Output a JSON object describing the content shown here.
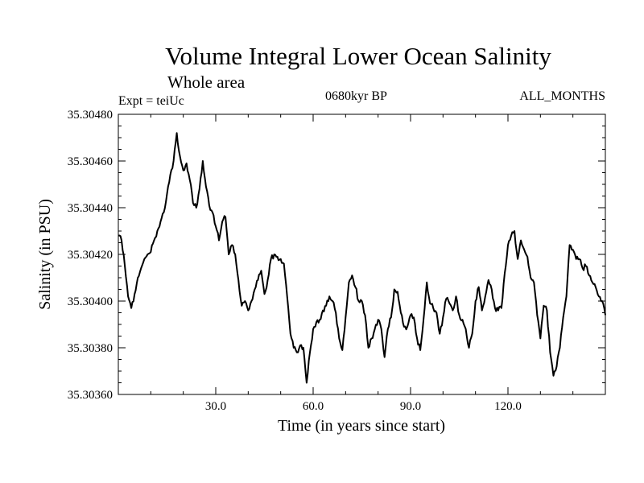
{
  "header": {
    "title": "Volume Integral Lower Ocean Salinity",
    "subtitle": "Whole area",
    "experiment": "Expt = teiUc",
    "period": "0680kyr BP",
    "months": "ALL_MONTHS"
  },
  "chart_data": {
    "type": "line",
    "title": "Volume Integral Lower Ocean Salinity",
    "xlabel": "Time (in years since start)",
    "ylabel": "Salinity (in PSU)",
    "xlim": [
      0,
      150
    ],
    "ylim": [
      35.3036,
      35.3048
    ],
    "x_ticks": [
      30,
      60,
      90,
      120
    ],
    "x_tick_labels": [
      "30.0",
      "60.0",
      "90.0",
      "120.0"
    ],
    "y_ticks": [
      35.3036,
      35.3038,
      35.304,
      35.3042,
      35.3044,
      35.3046,
      35.3048
    ],
    "y_tick_labels": [
      "35.30360",
      "35.30380",
      "35.30400",
      "35.30420",
      "35.30440",
      "35.30460",
      "35.30480"
    ],
    "grid": false,
    "series": [
      {
        "name": "Salinity",
        "x": [
          0,
          1,
          2,
          3,
          4,
          5,
          6,
          7,
          8,
          9,
          10,
          11,
          12,
          13,
          14,
          15,
          16,
          17,
          18,
          19,
          20,
          21,
          22,
          23,
          24,
          25,
          26,
          27,
          28,
          29,
          30,
          31,
          32,
          33,
          34,
          35,
          36,
          37,
          38,
          39,
          40,
          41,
          42,
          43,
          44,
          45,
          46,
          47,
          48,
          49,
          50,
          51,
          52,
          53,
          54,
          55,
          56,
          57,
          58,
          59,
          60,
          61,
          62,
          63,
          64,
          65,
          66,
          67,
          68,
          69,
          70,
          71,
          72,
          73,
          74,
          75,
          76,
          77,
          78,
          79,
          80,
          81,
          82,
          83,
          84,
          85,
          86,
          87,
          88,
          89,
          90,
          91,
          92,
          93,
          94,
          95,
          96,
          97,
          98,
          99,
          100,
          101,
          102,
          103,
          104,
          105,
          106,
          107,
          108,
          109,
          110,
          111,
          112,
          113,
          114,
          115,
          116,
          117,
          118,
          119,
          120,
          121,
          122,
          123,
          124,
          125,
          126,
          127,
          128,
          129,
          130,
          131,
          132,
          133,
          134,
          135,
          136,
          137,
          138,
          139,
          140,
          141,
          142,
          143,
          144,
          145,
          146,
          147,
          148,
          149,
          150
        ],
        "values": [
          35.30428,
          35.30426,
          35.30415,
          35.30402,
          35.30397,
          35.30403,
          35.3041,
          35.30414,
          35.30418,
          35.3042,
          35.30421,
          35.30426,
          35.3043,
          35.30434,
          35.30438,
          35.30446,
          35.30454,
          35.3046,
          35.30472,
          35.30462,
          35.30456,
          35.30459,
          35.30452,
          35.30442,
          35.3044,
          35.30448,
          35.3046,
          35.30449,
          35.30441,
          35.30438,
          35.30432,
          35.30426,
          35.30434,
          35.30436,
          35.3042,
          35.30424,
          35.3042,
          35.30409,
          35.30398,
          35.304,
          35.30396,
          35.304,
          35.30405,
          35.30409,
          35.30413,
          35.30403,
          35.30409,
          35.30418,
          35.3042,
          35.30419,
          35.30418,
          35.30416,
          35.30402,
          35.30386,
          35.3038,
          35.30378,
          35.30381,
          35.3038,
          35.30365,
          35.30378,
          35.30388,
          35.30391,
          35.30392,
          35.30396,
          35.30398,
          35.30402,
          35.304,
          35.30395,
          35.30384,
          35.30379,
          35.30393,
          35.30408,
          35.30411,
          35.30406,
          35.304,
          35.304,
          35.30394,
          35.3038,
          35.30384,
          35.30388,
          35.30392,
          35.30388,
          35.30376,
          35.30388,
          35.30393,
          35.30405,
          35.30404,
          35.30395,
          35.30389,
          35.30389,
          35.30394,
          35.30393,
          35.30384,
          35.30379,
          35.30392,
          35.30408,
          35.30399,
          35.30397,
          35.30395,
          35.30386,
          35.30393,
          35.30401,
          35.30399,
          35.30396,
          35.30402,
          35.30394,
          35.30392,
          35.30388,
          35.3038,
          35.30386,
          35.304,
          35.30406,
          35.30396,
          35.30402,
          35.30409,
          35.30405,
          35.30397,
          35.30396,
          35.30397,
          35.30412,
          35.30424,
          35.30428,
          35.3043,
          35.30418,
          35.30426,
          35.30422,
          35.30419,
          35.3041,
          35.30408,
          35.30394,
          35.30384,
          35.30398,
          35.30396,
          35.30378,
          35.30368,
          35.30372,
          35.3038,
          35.30393,
          35.30402,
          35.30424,
          35.30422,
          35.30418,
          35.30418,
          35.30414,
          35.30415,
          35.30411,
          35.30408,
          35.30406,
          35.30402,
          35.304,
          35.30394
        ]
      }
    ]
  }
}
